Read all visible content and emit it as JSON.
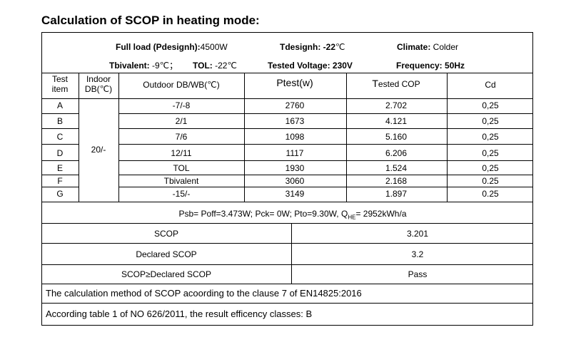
{
  "title": "Calculation of SCOP in heating mode:",
  "header": {
    "full_load_label": "Full load (Pdesignh):",
    "full_load_value": "4500W",
    "tdesign_label": "Tdesignh: -22",
    "tdesign_unit": "℃",
    "climate_label": "Climate:",
    "climate_value": " Colder",
    "tbivalent_label": "Tbivalent:",
    "tbivalent_value": " -9℃；",
    "tol_label": "TOL:",
    "tol_value": " -22℃",
    "voltage": "Tested Voltage: 230V",
    "frequency": "Frequency: 50Hz"
  },
  "columns": {
    "test_item": [
      "Test",
      "item"
    ],
    "indoor": [
      "Indoor",
      "DB(℃)"
    ],
    "outdoor": "Outdoor DB/WB(℃)",
    "ptest_p": "P",
    "ptest_rest": "test(w)",
    "cop_t": "T",
    "cop_rest": "ested COP",
    "cd": "Cd"
  },
  "indoor_value": "20/-",
  "rows": [
    {
      "item": "A",
      "outdoor": "-7/-8",
      "ptest": "2760",
      "cop": "2.702",
      "cd": "0,25"
    },
    {
      "item": "B",
      "outdoor": "2/1",
      "ptest": "1673",
      "cop": "4.121",
      "cd": "0,25"
    },
    {
      "item": "C",
      "outdoor": "7/6",
      "ptest": "1098",
      "cop": "5.160",
      "cd": "0,25"
    },
    {
      "item": "D",
      "outdoor": "12/11",
      "ptest": "1117",
      "cop": "6.206",
      "cd": "0,25"
    },
    {
      "item": "E",
      "outdoor": "TOL",
      "ptest": "1930",
      "cop": "1.524",
      "cd": "0,25"
    },
    {
      "item": "F",
      "outdoor": "Tbivalent",
      "ptest": "3060",
      "cop": "2.168",
      "cd": "0.25"
    },
    {
      "item": "G",
      "outdoor": "-15/-",
      "ptest": "3149",
      "cop": "1.897",
      "cd": "0.25"
    }
  ],
  "power_line": {
    "main": "Psb= Poff=3.473W;   Pck=  0W; Pto=9.30W, Q",
    "sub": "HE",
    "tail": "= 2952kWh/a"
  },
  "summary": [
    {
      "label": "SCOP",
      "value": "3.201"
    },
    {
      "label": "Declared SCOP",
      "value": "3.2"
    },
    {
      "label": "SCOP≥Declared SCOP",
      "value": "Pass"
    }
  ],
  "notes": [
    "The calculation method of SCOP acoording to the clause 7 of EN14825:2016",
    "According table 1 of NO 626/2011, the result efficency classes: B"
  ]
}
